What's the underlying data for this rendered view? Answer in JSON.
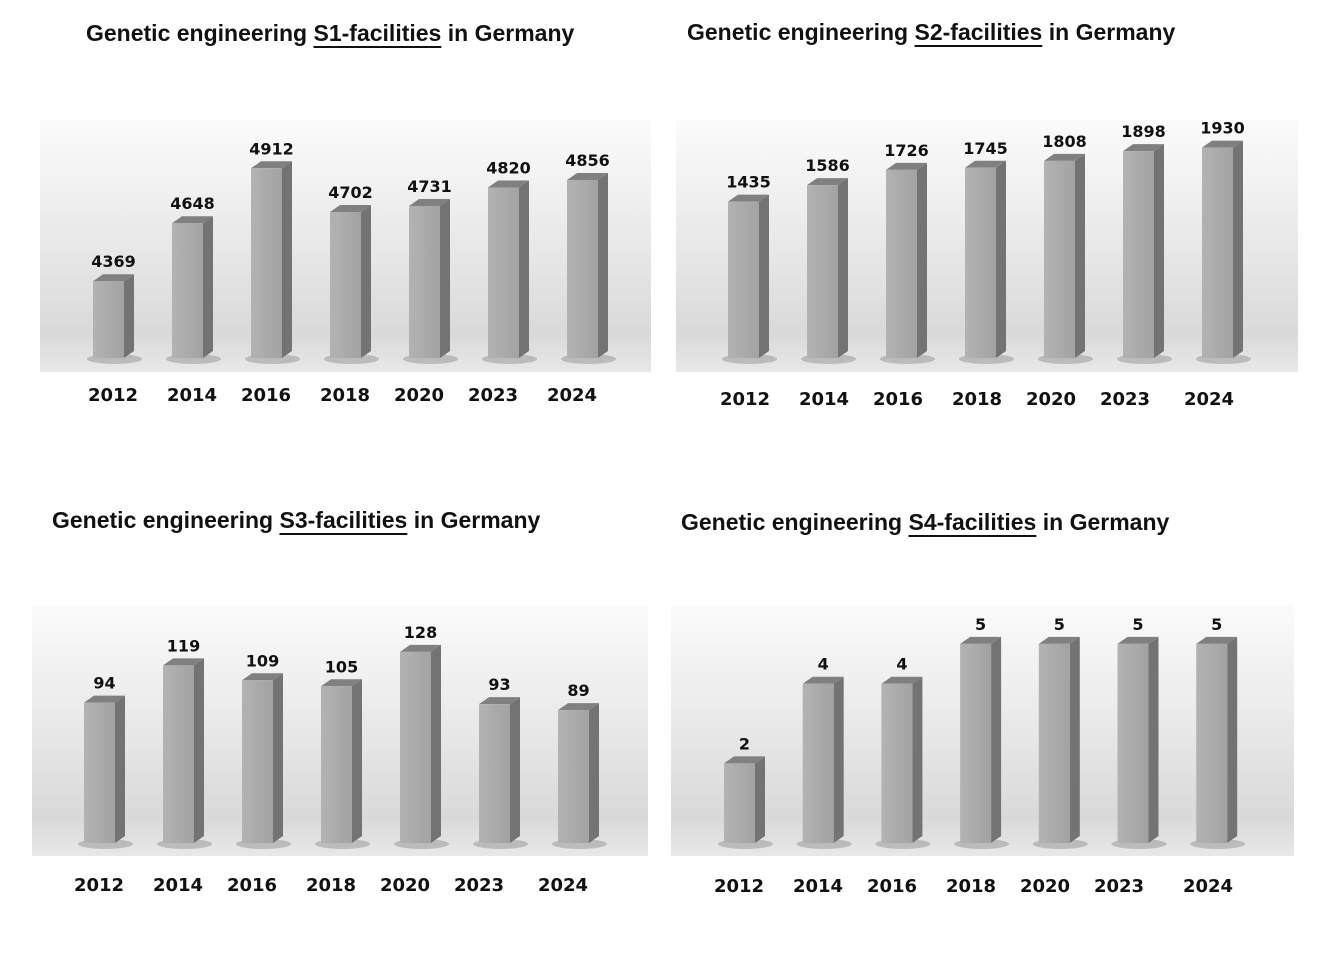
{
  "chart_data": [
    {
      "type": "bar",
      "title_prefix": "Genetic engineering ",
      "title_highlight": "S1-facilities",
      "title_suffix": " in Germany",
      "categories": [
        "2012",
        "2014",
        "2016",
        "2018",
        "2020",
        "2023",
        "2024"
      ],
      "values": [
        4369,
        4648,
        4912,
        4702,
        4731,
        4820,
        4856
      ],
      "ylim": [
        4000,
        5000
      ],
      "xlabel": "",
      "ylabel": "",
      "grid": false
    },
    {
      "type": "bar",
      "title_prefix": "Genetic engineering ",
      "title_highlight": "S2-facilities",
      "title_suffix": " in Germany",
      "categories": [
        "2012",
        "2014",
        "2016",
        "2018",
        "2020",
        "2023",
        "2024"
      ],
      "values": [
        1435,
        1586,
        1726,
        1745,
        1808,
        1898,
        1930
      ],
      "ylim": [
        0,
        2000
      ],
      "xlabel": "",
      "ylabel": "",
      "grid": false
    },
    {
      "type": "bar",
      "title_prefix": "Genetic engineering ",
      "title_highlight": "S3-facilities",
      "title_suffix": " in Germany",
      "categories": [
        "2012",
        "2014",
        "2016",
        "2018",
        "2020",
        "2023",
        "2024"
      ],
      "values": [
        94,
        119,
        109,
        105,
        128,
        93,
        89
      ],
      "ylim": [
        0,
        140
      ],
      "xlabel": "",
      "ylabel": "",
      "grid": false
    },
    {
      "type": "bar",
      "title_prefix": "Genetic engineering ",
      "title_highlight": "S4-facilities",
      "title_suffix": " in Germany",
      "categories": [
        "2012",
        "2014",
        "2016",
        "2018",
        "2020",
        "2023",
        "2024"
      ],
      "values": [
        2,
        4,
        4,
        5,
        5,
        5,
        5
      ],
      "ylim": [
        0,
        5.5
      ],
      "xlabel": "",
      "ylabel": "",
      "grid": false
    }
  ]
}
